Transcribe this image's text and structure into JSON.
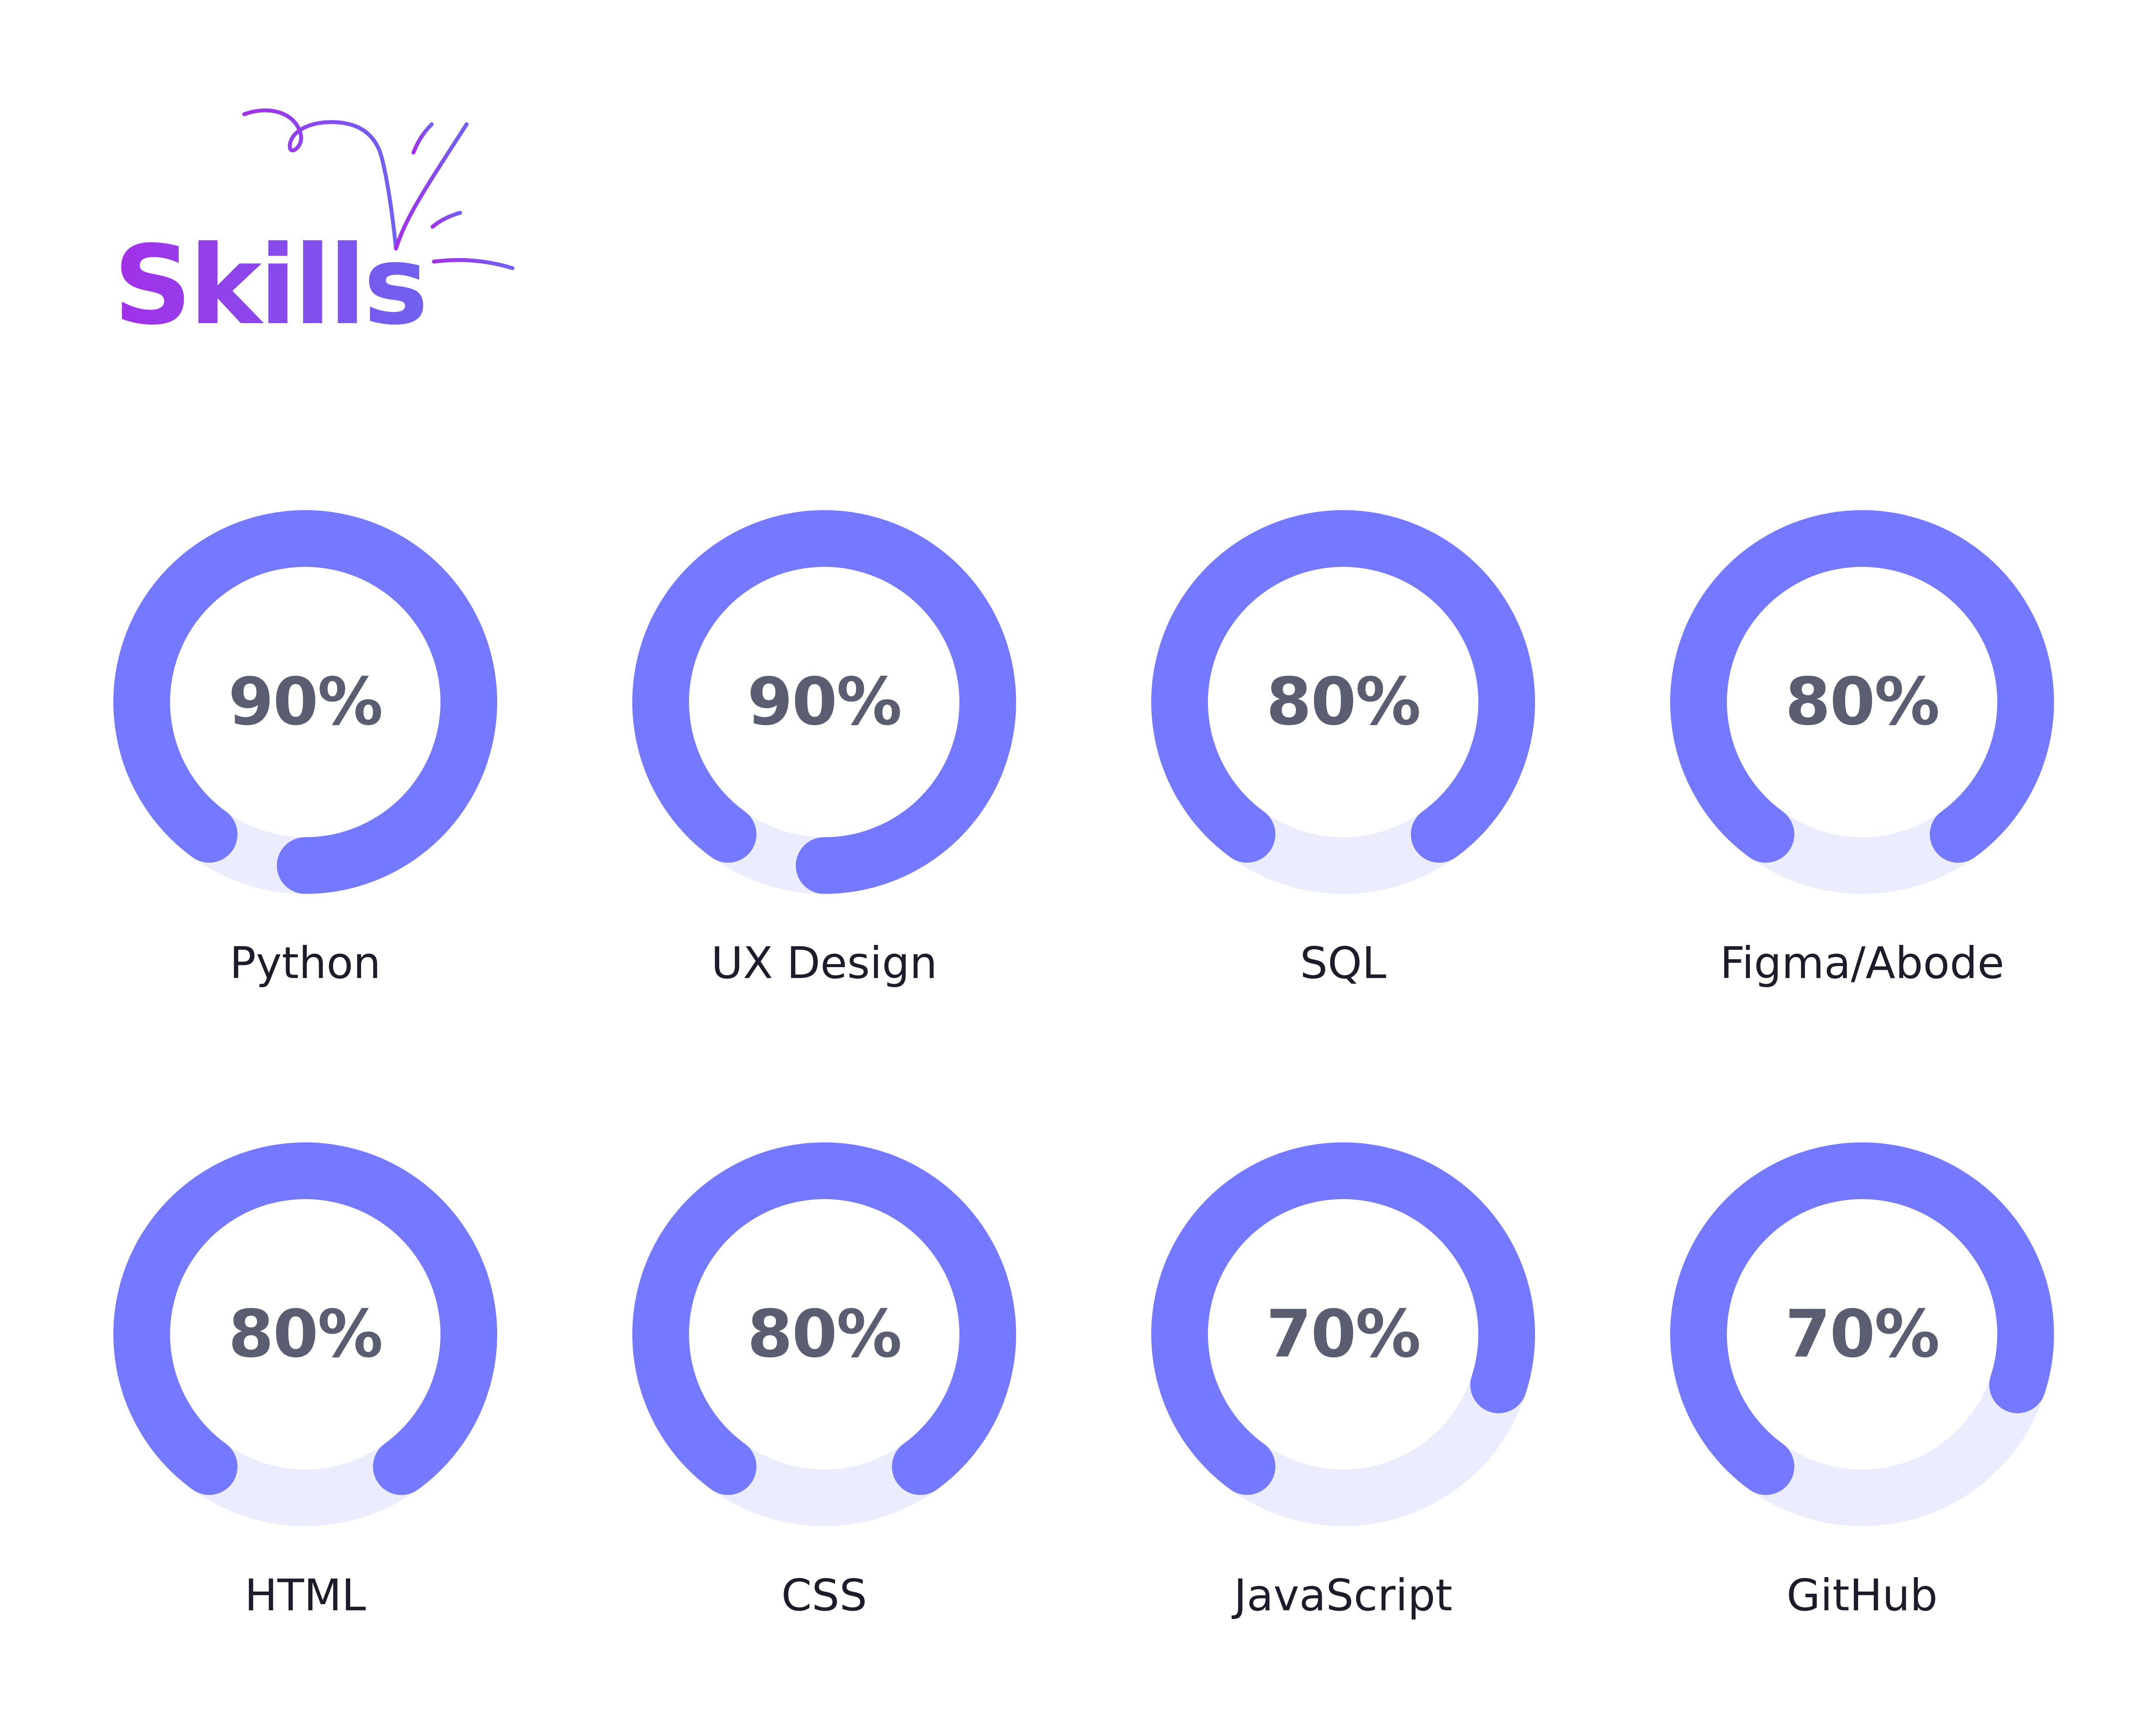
{
  "header": {
    "title": "Skills"
  },
  "colors": {
    "ring_fill": "#7579ff",
    "ring_track": "#ebecfd",
    "percent_text": "#5b5e70",
    "label_text": "#1c1c2b",
    "title_gradient_start": "#a330e8",
    "title_gradient_end": "#6f62f0"
  },
  "skills": [
    {
      "name": "Python",
      "percent_label": "90%",
      "percent": 90
    },
    {
      "name": "UX Design",
      "percent_label": "90%",
      "percent": 90
    },
    {
      "name": "SQL",
      "percent_label": "80%",
      "percent": 80
    },
    {
      "name": "Figma/Abode",
      "percent_label": "80%",
      "percent": 80
    },
    {
      "name": "HTML",
      "percent_label": "80%",
      "percent": 80
    },
    {
      "name": "CSS",
      "percent_label": "80%",
      "percent": 80
    },
    {
      "name": "JavaScript",
      "percent_label": "70%",
      "percent": 70
    },
    {
      "name": "GitHub",
      "percent_label": "70%",
      "percent": 70
    }
  ]
}
